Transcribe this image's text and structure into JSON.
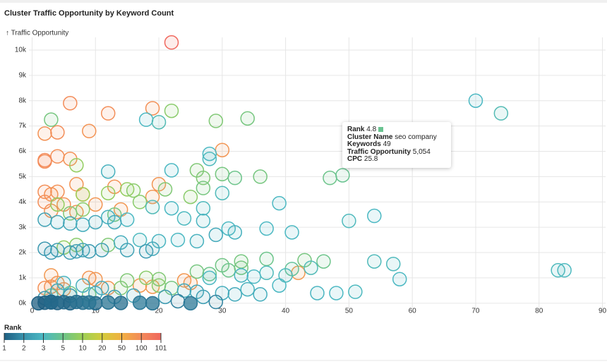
{
  "chart_data": {
    "type": "scatter",
    "title": "Cluster Traffic Opportunity by Keyword Count",
    "y_label": "↑ Traffic Opportunity",
    "xlim": [
      -0.5,
      90.5
    ],
    "xticks": [
      0,
      10,
      20,
      30,
      40,
      50,
      60,
      70,
      80,
      90
    ],
    "ylim": [
      -200,
      10500
    ],
    "yticks": [
      {
        "value": 0,
        "label": "0k"
      },
      {
        "value": 1000,
        "label": "1k"
      },
      {
        "value": 2000,
        "label": "2k"
      },
      {
        "value": 3000,
        "label": "3k"
      },
      {
        "value": 4000,
        "label": "4k"
      },
      {
        "value": 5000,
        "label": "5k"
      },
      {
        "value": 6000,
        "label": "6k"
      },
      {
        "value": 7000,
        "label": "7k"
      },
      {
        "value": 8000,
        "label": "8k"
      },
      {
        "value": 9000,
        "label": "9k"
      },
      {
        "value": 10000,
        "label": "10k"
      }
    ],
    "grid": true,
    "legend_title": "Rank",
    "legend_ticks": [
      1,
      2,
      3,
      5,
      10,
      20,
      50,
      100,
      101
    ],
    "legend_colors": [
      "#1f5f82",
      "#3893ad",
      "#4bb8c2",
      "#6cc48a",
      "#9dcf55",
      "#d3cc3c",
      "#f1b041",
      "#f38a5a",
      "#f0675d"
    ],
    "x": [
      22,
      6,
      12,
      19,
      2,
      4,
      9,
      30,
      4,
      6,
      2,
      2,
      7,
      20,
      13,
      2,
      4,
      3,
      8,
      19,
      2,
      5,
      10,
      14,
      3,
      7,
      3,
      4,
      9,
      10,
      2,
      3,
      42,
      25,
      17,
      24,
      5,
      12,
      19,
      3,
      22,
      29,
      34,
      7,
      26,
      30,
      32,
      36,
      27,
      47,
      49,
      15,
      16,
      21,
      27,
      25,
      12,
      17,
      8,
      4,
      8,
      6,
      13,
      33,
      37,
      43,
      46,
      30,
      41,
      26,
      28,
      15,
      18,
      20,
      31,
      33,
      5,
      7,
      12,
      3,
      6,
      9,
      14,
      20,
      22,
      70,
      74,
      18,
      20,
      28,
      28,
      12,
      22,
      30,
      39,
      19,
      22,
      27,
      12,
      15,
      24,
      27,
      54,
      50,
      10,
      13,
      2,
      4,
      6,
      8,
      37,
      41,
      31,
      32,
      29,
      17,
      20,
      23,
      26,
      14,
      9,
      11,
      15,
      18,
      2,
      4,
      6,
      8,
      7,
      3,
      19,
      54,
      57,
      58,
      83,
      84,
      37,
      40,
      44,
      28,
      33,
      35,
      24,
      26,
      30,
      32,
      34,
      36,
      45,
      48,
      51,
      39,
      16,
      13,
      10,
      21,
      27,
      11,
      8,
      5,
      6,
      4,
      2,
      1,
      2,
      3,
      4,
      5,
      6,
      8,
      10,
      12,
      14,
      17,
      19,
      23,
      25,
      29,
      3,
      7,
      9
    ],
    "values": [
      10300,
      7900,
      7500,
      7700,
      6700,
      6750,
      6800,
      6050,
      5800,
      5700,
      5600,
      5650,
      4700,
      4700,
      4600,
      4400,
      4400,
      4300,
      4300,
      4200,
      4000,
      3900,
      3900,
      3700,
      3650,
      3600,
      1100,
      800,
      1000,
      950,
      600,
      650,
      1200,
      800,
      700,
      900,
      550,
      600,
      650,
      7250,
      7600,
      7200,
      7300,
      5450,
      5250,
      5100,
      4950,
      5000,
      4950,
      4950,
      5054,
      4500,
      4450,
      4500,
      4550,
      4200,
      4350,
      4000,
      4300,
      3900,
      3700,
      3550,
      3500,
      1650,
      1750,
      1700,
      1650,
      1500,
      1350,
      1250,
      1150,
      900,
      1000,
      950,
      1300,
      1400,
      2200,
      2300,
      2300,
      300,
      400,
      350,
      600,
      700,
      600,
      8000,
      7500,
      7250,
      7150,
      5900,
      5700,
      5200,
      5250,
      4350,
      3950,
      3800,
      3750,
      3750,
      3400,
      3300,
      3350,
      3250,
      3450,
      3250,
      3200,
      3200,
      3300,
      3200,
      3150,
      3100,
      2950,
      2800,
      2950,
      2800,
      2700,
      2500,
      2450,
      2500,
      2450,
      2400,
      2050,
      2100,
      2100,
      2050,
      2150,
      2100,
      2000,
      2100,
      2050,
      2000,
      2150,
      1650,
      1550,
      950,
      1300,
      1300,
      1200,
      1100,
      1400,
      1000,
      1100,
      1050,
      500,
      450,
      400,
      350,
      550,
      350,
      400,
      400,
      450,
      700,
      300,
      250,
      400,
      250,
      250,
      600,
      700,
      800,
      300,
      500,
      200,
      0,
      20,
      30,
      10,
      40,
      0,
      20,
      0,
      30,
      10,
      20,
      0,
      80,
      0,
      50,
      60,
      50,
      30
    ],
    "ranks": [
      101,
      98,
      95,
      92,
      90,
      96,
      88,
      85,
      93,
      91,
      97,
      99,
      87,
      86,
      90,
      94,
      92,
      89,
      88,
      84,
      95,
      90,
      86,
      83,
      91,
      89,
      82,
      85,
      86,
      84,
      92,
      90,
      80,
      83,
      82,
      81,
      88,
      84,
      82,
      6,
      8,
      7,
      6,
      9,
      7,
      6,
      5,
      6,
      7,
      5,
      4.8,
      9,
      8,
      7,
      6,
      8,
      9,
      8,
      10,
      9,
      8,
      7,
      6,
      6,
      5,
      6,
      5,
      5.5,
      4.5,
      6,
      5,
      7,
      8,
      7,
      5,
      6,
      9,
      8,
      7,
      4.5,
      5,
      6,
      7,
      8,
      6,
      3,
      3.5,
      3,
      3.5,
      3,
      3.2,
      2.8,
      3,
      3.3,
      3,
      3.4,
      3,
      3.2,
      2.8,
      3,
      3.1,
      2.9,
      3,
      3.2,
      2.5,
      2.6,
      2.4,
      2.6,
      2.5,
      2.7,
      3,
      3,
      3,
      2.8,
      2.6,
      3.1,
      2.9,
      3,
      2.8,
      2.7,
      2.2,
      2.3,
      2.4,
      2.2,
      2.1,
      2.3,
      2.2,
      2.4,
      2.3,
      2.2,
      2.5,
      3.3,
      3.2,
      3,
      3.2,
      3.1,
      3.3,
      3.2,
      3.4,
      3,
      2.9,
      3,
      2.6,
      2.5,
      2.7,
      2.6,
      2.8,
      2.7,
      2.9,
      3,
      3.1,
      3,
      2.4,
      2.3,
      2.5,
      2.2,
      2.3,
      2.6,
      2.7,
      2.9,
      2.2,
      2.5,
      2.1,
      1,
      1,
      1.1,
      1,
      1.2,
      1.1,
      1.3,
      1.2,
      1.4,
      1.3,
      1.5,
      1.4,
      1.6,
      1.5,
      1.7,
      1.2,
      1.3,
      1.4
    ]
  },
  "tooltip": {
    "rows": [
      {
        "label": "Rank",
        "value": 4.8
      },
      {
        "label": "Cluster Name",
        "value": "seo company"
      },
      {
        "label": "Keywords",
        "value": 49
      },
      {
        "label": "Traffic Opportunity",
        "value": "5,054"
      },
      {
        "label": "CPC",
        "value": 25.8
      }
    ]
  }
}
